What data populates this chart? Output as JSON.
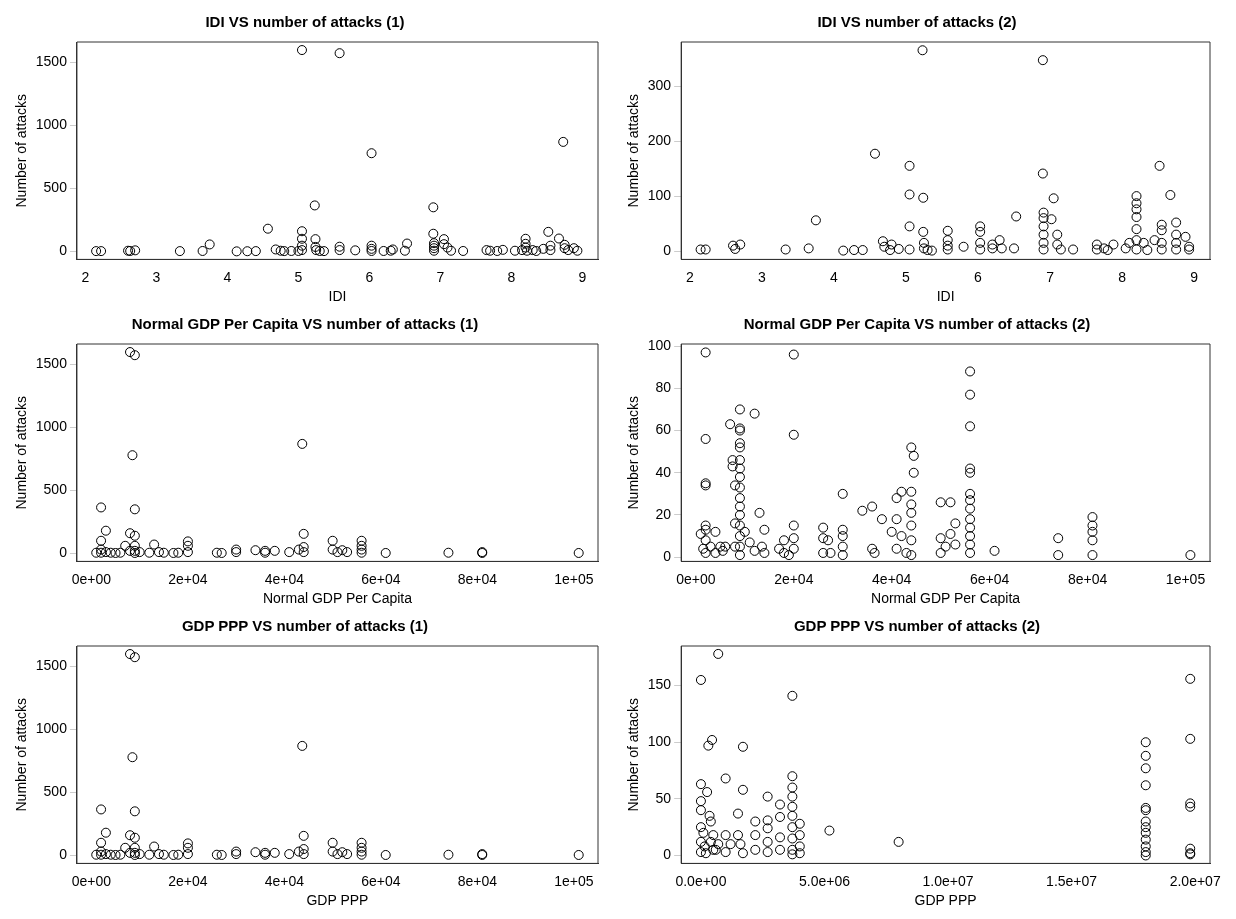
{
  "chart_data": [
    {
      "type": "scatter",
      "title": "IDI VS number of attacks (1)",
      "xlabel": "IDI",
      "ylabel": "Number of attacks",
      "marker": "circle",
      "color": "#000000",
      "xlim": [
        1.88,
        9.22
      ],
      "ylim": [
        -64,
        1664
      ],
      "xticks": [
        2,
        3,
        4,
        5,
        6,
        7,
        8,
        9
      ],
      "yticks": [
        0,
        500,
        1000,
        1500
      ],
      "x": [
        2.15,
        2.22,
        2.6,
        2.63,
        2.7,
        3.33,
        3.65,
        3.75,
        4.13,
        4.28,
        4.4,
        4.57,
        4.68,
        4.75,
        4.8,
        4.9,
        5.0,
        5.05,
        5.05,
        5.05,
        5.05,
        5.05,
        5.23,
        5.24,
        5.24,
        5.25,
        5.3,
        5.36,
        5.58,
        5.58,
        5.58,
        5.8,
        6.03,
        6.03,
        6.03,
        6.03,
        6.2,
        6.3,
        6.33,
        6.5,
        6.53,
        6.9,
        6.9,
        6.91,
        6.91,
        6.91,
        6.91,
        7.05,
        7.05,
        7.1,
        7.15,
        7.32,
        7.65,
        7.7,
        7.8,
        7.88,
        8.05,
        8.15,
        8.2,
        8.2,
        8.2,
        8.22,
        8.3,
        8.35,
        8.45,
        8.52,
        8.55,
        8.55,
        8.67,
        8.73,
        8.75,
        8.75,
        8.8,
        8.88,
        8.93
      ],
      "values": [
        2,
        2,
        5,
        3,
        8,
        2,
        3,
        55,
        0,
        1,
        2,
        180,
        15,
        5,
        2,
        3,
        3,
        1600,
        160,
        100,
        45,
        10,
        365,
        97,
        35,
        10,
        3,
        2,
        1575,
        37,
        10,
        8,
        780,
        45,
        20,
        3,
        3,
        5,
        15,
        5,
        62,
        350,
        140,
        65,
        45,
        25,
        5,
        97,
        57,
        30,
        5,
        3,
        10,
        5,
        3,
        12,
        5,
        10,
        100,
        60,
        30,
        5,
        10,
        3,
        20,
        155,
        45,
        10,
        102,
        870,
        52,
        25,
        10,
        25,
        5
      ]
    },
    {
      "type": "scatter",
      "title": "IDI VS number of attacks (2)",
      "xlabel": "IDI",
      "ylabel": "Number of attacks",
      "marker": "circle",
      "color": "#000000",
      "xlim": [
        1.88,
        9.22
      ],
      "ylim": [
        -15,
        380
      ],
      "xticks": [
        2,
        3,
        4,
        5,
        6,
        7,
        8,
        9
      ],
      "yticks": [
        0,
        100,
        200,
        300
      ],
      "x": [
        2.15,
        2.22,
        2.6,
        2.63,
        2.7,
        3.33,
        3.65,
        3.75,
        4.13,
        4.28,
        4.4,
        4.57,
        4.68,
        4.7,
        4.78,
        4.8,
        4.9,
        5.05,
        5.05,
        5.05,
        5.05,
        5.23,
        5.24,
        5.24,
        5.25,
        5.25,
        5.3,
        5.36,
        5.58,
        5.58,
        5.58,
        5.58,
        5.8,
        6.03,
        6.03,
        6.03,
        6.03,
        6.2,
        6.2,
        6.3,
        6.33,
        6.5,
        6.53,
        6.9,
        6.9,
        6.91,
        6.91,
        6.91,
        6.91,
        6.91,
        6.91,
        7.05,
        7.02,
        7.1,
        7.1,
        7.15,
        7.32,
        7.65,
        7.65,
        7.75,
        7.8,
        7.88,
        8.05,
        8.1,
        8.2,
        8.2,
        8.2,
        8.2,
        8.2,
        8.2,
        8.2,
        8.3,
        8.35,
        8.45,
        8.52,
        8.55,
        8.55,
        8.55,
        8.55,
        8.67,
        8.75,
        8.75,
        8.75,
        8.75,
        8.88,
        8.93,
        8.93
      ],
      "values": [
        3,
        3,
        10,
        4,
        12,
        3,
        5,
        56,
        1,
        2,
        2,
        177,
        18,
        8,
        2,
        12,
        4,
        155,
        103,
        45,
        3,
        365,
        97,
        35,
        15,
        5,
        2,
        1,
        37,
        20,
        10,
        3,
        8,
        45,
        35,
        15,
        3,
        5,
        12,
        20,
        5,
        5,
        63,
        347,
        141,
        70,
        60,
        45,
        30,
        15,
        3,
        96,
        58,
        30,
        12,
        3,
        3,
        12,
        3,
        5,
        2,
        12,
        5,
        15,
        100,
        87,
        76,
        62,
        40,
        20,
        3,
        15,
        2,
        20,
        155,
        48,
        38,
        15,
        3,
        102,
        52,
        30,
        15,
        3,
        26,
        8,
        3
      ]
    },
    {
      "type": "scatter",
      "title": "Normal GDP Per Capita VS number of attacks (1)",
      "xlabel": "Normal GDP Per Capita",
      "ylabel": "Number of attacks",
      "marker": "circle",
      "color": "#000000",
      "xlim": [
        -3000,
        105000
      ],
      "ylim": [
        -64,
        1664
      ],
      "xticks": [
        {
          "value": 0,
          "label": "0e+00"
        },
        {
          "value": 20000,
          "label": "2e+04"
        },
        {
          "value": 40000,
          "label": "4e+04"
        },
        {
          "value": 60000,
          "label": "6e+04"
        },
        {
          "value": 80000,
          "label": "8e+04"
        },
        {
          "value": 100000,
          "label": "1e+05"
        }
      ],
      "yticks": [
        0,
        500,
        1000,
        1500
      ],
      "x": [
        1000,
        2000,
        2000,
        2000,
        2000,
        3000,
        3000,
        4000,
        5000,
        6000,
        7000,
        8000,
        8000,
        8000,
        8500,
        9000,
        9000,
        9000,
        9000,
        9000,
        9000,
        10000,
        12000,
        13000,
        14000,
        15000,
        17000,
        18000,
        20000,
        20000,
        20000,
        26000,
        27000,
        30000,
        30000,
        34000,
        36000,
        36000,
        38000,
        41000,
        43000,
        43700,
        44000,
        44000,
        44000,
        50000,
        50000,
        51000,
        52000,
        53000,
        56000,
        56000,
        56000,
        56000,
        61000,
        74000,
        81000,
        81000,
        101000
      ],
      "values": [
        5,
        365,
        100,
        30,
        5,
        180,
        10,
        5,
        3,
        5,
        60,
        1600,
        160,
        20,
        780,
        1575,
        350,
        140,
        60,
        20,
        3,
        10,
        5,
        70,
        10,
        5,
        3,
        5,
        95,
        60,
        10,
        5,
        3,
        30,
        10,
        25,
        20,
        5,
        20,
        10,
        30,
        870,
        155,
        50,
        10,
        100,
        30,
        10,
        25,
        10,
        100,
        60,
        30,
        5,
        3,
        5,
        10,
        3,
        3
      ]
    },
    {
      "type": "scatter",
      "title": "Normal GDP Per Capita VS number of attacks (2)",
      "xlabel": "Normal GDP Per Capita",
      "ylabel": "Number of attacks",
      "marker": "circle",
      "color": "#000000",
      "xlim": [
        -3000,
        105000
      ],
      "ylim": [
        -2,
        101
      ],
      "xticks": [
        {
          "value": 0,
          "label": "0e+00"
        },
        {
          "value": 20000,
          "label": "2e+04"
        },
        {
          "value": 40000,
          "label": "4e+04"
        },
        {
          "value": 60000,
          "label": "6e+04"
        },
        {
          "value": 80000,
          "label": "8e+04"
        },
        {
          "value": 100000,
          "label": "1e+05"
        }
      ],
      "yticks": [
        0,
        20,
        40,
        60,
        80,
        100
      ],
      "x": [
        1000,
        1500,
        2000,
        2000,
        2000,
        2000,
        2000,
        2000,
        2000,
        2000,
        3000,
        4000,
        4000,
        5000,
        5500,
        6000,
        7000,
        7500,
        7500,
        8000,
        8000,
        8000,
        9000,
        9000,
        9000,
        9000,
        9000,
        9000,
        9000,
        9000,
        9000,
        9000,
        9000,
        9000,
        9000,
        9000,
        9000,
        9000,
        10000,
        11000,
        12000,
        12000,
        13000,
        13500,
        14000,
        14000,
        17000,
        18000,
        18000,
        19000,
        20000,
        20000,
        20000,
        20000,
        20000,
        26000,
        26000,
        26000,
        27000,
        27500,
        30000,
        30000,
        30000,
        30000,
        30000,
        34000,
        36000,
        36000,
        36500,
        38000,
        40000,
        41000,
        41000,
        41000,
        42000,
        42000,
        43000,
        44000,
        44500,
        44500,
        44000,
        44000,
        44000,
        44000,
        44000,
        44000,
        50000,
        50000,
        50000,
        51000,
        52000,
        52000,
        53000,
        53000,
        56000,
        56000,
        56000,
        56000,
        56000,
        56000,
        56000,
        56000,
        56000,
        56000,
        56000,
        56000,
        56000,
        61000,
        74000,
        74000,
        81000,
        81000,
        81000,
        81000,
        81000,
        101000
      ],
      "values": [
        11,
        4,
        13,
        97,
        56,
        35,
        34,
        15,
        8,
        2,
        5,
        12,
        2,
        5,
        3,
        5,
        63,
        46,
        43,
        34,
        16,
        5,
        70,
        61,
        60,
        54,
        52,
        46,
        42,
        38,
        33,
        28,
        24,
        20,
        15,
        10,
        5,
        1,
        12,
        7,
        68,
        3,
        21,
        5,
        13,
        2,
        4,
        8,
        2,
        1,
        96,
        58,
        15,
        9,
        4,
        14,
        9,
        2,
        8,
        2,
        30,
        13,
        10,
        5,
        1,
        22,
        24,
        4,
        2,
        18,
        12,
        28,
        18,
        4,
        31,
        10,
        2,
        52,
        48,
        40,
        31,
        25,
        21,
        15,
        8,
        1,
        26,
        9,
        2,
        5,
        26,
        11,
        16,
        6,
        88,
        77,
        62,
        42,
        40,
        30,
        27,
        23,
        18,
        14,
        10,
        6,
        2,
        3,
        9,
        1,
        19,
        15,
        12,
        8,
        1,
        1
      ]
    },
    {
      "type": "scatter",
      "title": "GDP PPP VS number of attacks (1)",
      "xlabel": "GDP PPP",
      "ylabel": "Number of attacks",
      "marker": "circle",
      "color": "#000000",
      "xlim": [
        -3000,
        105000
      ],
      "ylim": [
        -64,
        1664
      ],
      "xticks": [
        {
          "value": 0,
          "label": "0e+00"
        },
        {
          "value": 20000,
          "label": "2e+04"
        },
        {
          "value": 40000,
          "label": "4e+04"
        },
        {
          "value": 60000,
          "label": "6e+04"
        },
        {
          "value": 80000,
          "label": "8e+04"
        },
        {
          "value": 100000,
          "label": "1e+05"
        }
      ],
      "yticks": [
        0,
        500,
        1000,
        1500
      ],
      "x": [
        1000,
        2000,
        2000,
        2000,
        2000,
        3000,
        3000,
        4000,
        5000,
        6000,
        7000,
        8000,
        8000,
        8000,
        8500,
        9000,
        9000,
        9000,
        9000,
        9000,
        9000,
        10000,
        12000,
        13000,
        14000,
        15000,
        17000,
        18000,
        20000,
        20000,
        20000,
        26000,
        27000,
        30000,
        30000,
        34000,
        36000,
        36000,
        38000,
        41000,
        43000,
        43700,
        44000,
        44000,
        44000,
        50000,
        50000,
        51000,
        52000,
        53000,
        56000,
        56000,
        56000,
        56000,
        61000,
        74000,
        81000,
        81000,
        101000
      ],
      "values": [
        5,
        365,
        100,
        30,
        5,
        180,
        10,
        5,
        3,
        5,
        60,
        1600,
        160,
        20,
        780,
        1575,
        350,
        140,
        60,
        20,
        3,
        10,
        5,
        70,
        10,
        5,
        3,
        5,
        95,
        60,
        10,
        5,
        3,
        30,
        10,
        25,
        20,
        5,
        20,
        10,
        30,
        870,
        155,
        50,
        10,
        100,
        30,
        10,
        25,
        10,
        100,
        60,
        30,
        5,
        3,
        5,
        10,
        3,
        3
      ]
    },
    {
      "type": "scatter",
      "title": "GDP PPP VS number of attacks (2)",
      "xlabel": "GDP PPP",
      "ylabel": "Number of attacks",
      "marker": "circle",
      "color": "#000000",
      "xlim": [
        -800000,
        20600000
      ],
      "ylim": [
        -7,
        185
      ],
      "xticks": [
        {
          "value": 0,
          "label": "0.0e+00"
        },
        {
          "value": 5000000,
          "label": "5.0e+06"
        },
        {
          "value": 10000000,
          "label": "1.0e+07"
        },
        {
          "value": 15000000,
          "label": "1.5e+07"
        },
        {
          "value": 20000000,
          "label": "2.0e+07"
        }
      ],
      "yticks": [
        0,
        50,
        100,
        150
      ],
      "x": [
        0,
        0,
        0,
        0,
        0,
        0,
        0,
        100000,
        150000,
        200000,
        250000,
        300000,
        350000,
        400000,
        400000,
        450000,
        500000,
        500000,
        600000,
        700000,
        700000,
        1000000,
        1000000,
        1000000,
        1200000,
        1500000,
        1500000,
        1600000,
        1700000,
        1700000,
        1700000,
        2200000,
        2200000,
        2200000,
        2700000,
        2700000,
        2700000,
        2700000,
        2700000,
        3200000,
        3200000,
        3200000,
        3200000,
        3700000,
        3700000,
        3700000,
        3700000,
        3700000,
        3700000,
        3700000,
        3700000,
        3700000,
        3700000,
        4000000,
        4000000,
        4000000,
        4000000,
        5200000,
        8000000,
        18000000,
        18000000,
        18000000,
        18000000,
        18000000,
        18000000,
        18000000,
        18000000,
        18000000,
        18000000,
        18000000,
        18000000,
        18000000,
        19800000,
        19800000,
        19800000,
        19800000,
        19800000,
        19800000,
        19800000
      ],
      "values": [
        155,
        63,
        48,
        40,
        25,
        12,
        3,
        20,
        8,
        2,
        56,
        97,
        35,
        30,
        12,
        102,
        5,
        18,
        5,
        178,
        10,
        68,
        18,
        3,
        10,
        37,
        18,
        10,
        96,
        58,
        2,
        30,
        18,
        5,
        52,
        31,
        24,
        12,
        3,
        45,
        34,
        16,
        5,
        141,
        70,
        60,
        52,
        43,
        35,
        25,
        15,
        5,
        1,
        28,
        18,
        8,
        2,
        22,
        12,
        100,
        88,
        77,
        62,
        42,
        40,
        30,
        25,
        20,
        14,
        8,
        3,
        0,
        156,
        103,
        46,
        43,
        6,
        2,
        1
      ]
    }
  ]
}
